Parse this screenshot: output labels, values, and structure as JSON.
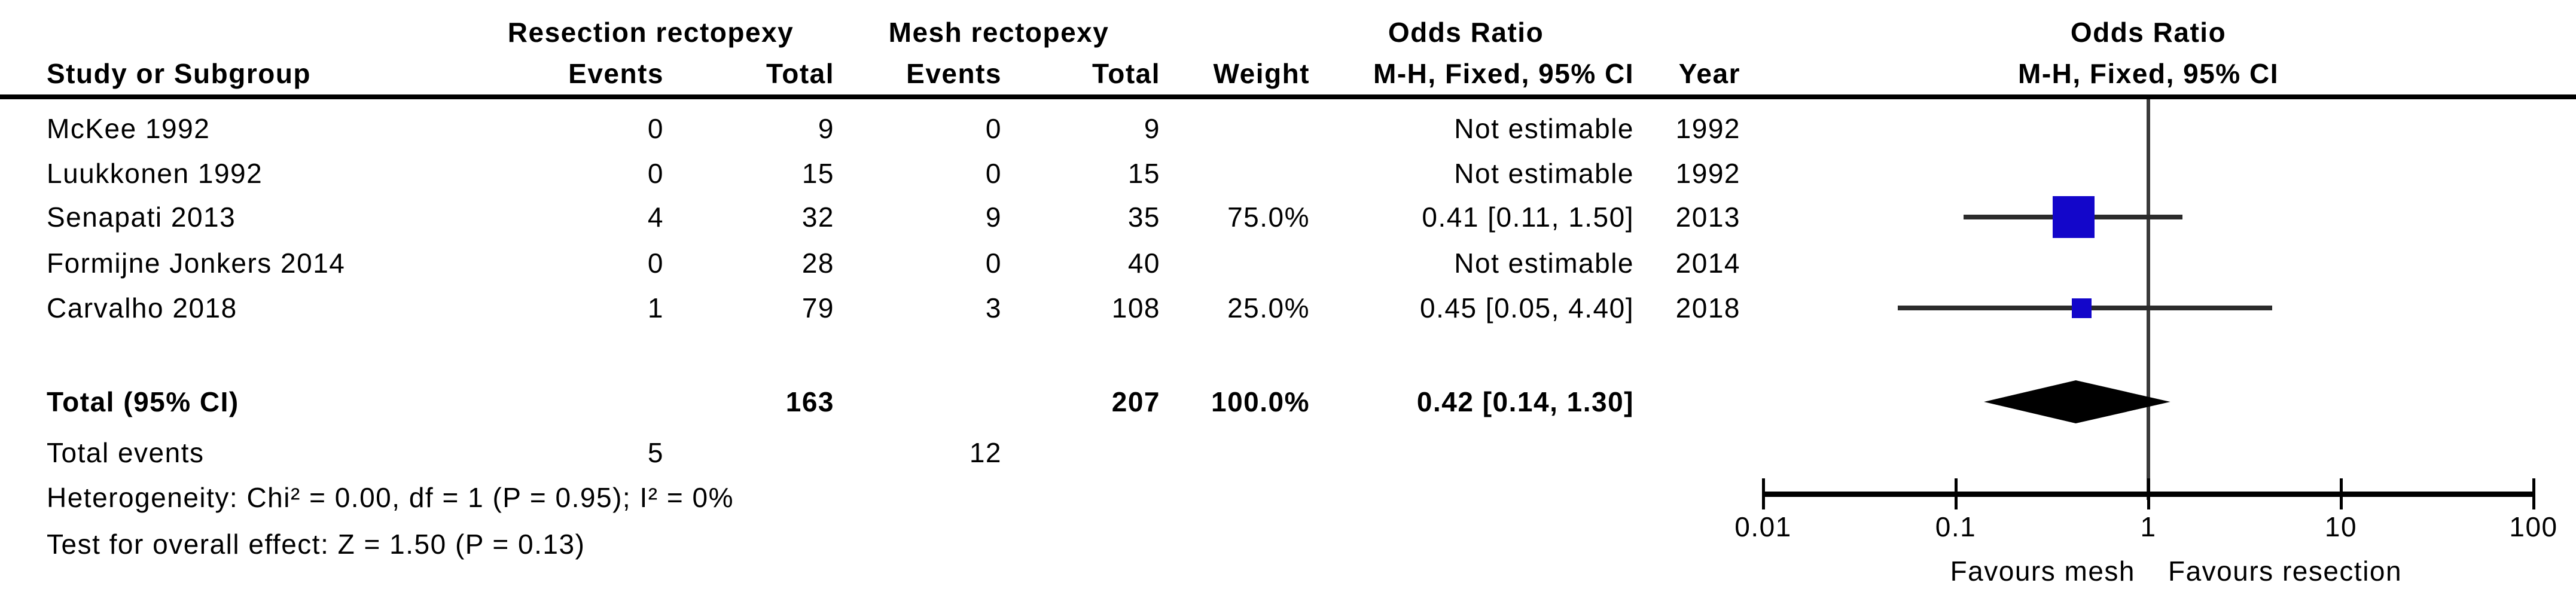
{
  "header": {
    "res_group": "Resection rectopexy",
    "mesh_group": "Mesh rectopexy",
    "or_table_title": "Odds Ratio",
    "or_plot_title": "Odds Ratio",
    "col_study": "Study or Subgroup",
    "col_res_events": "Events",
    "col_res_total": "Total",
    "col_mesh_events": "Events",
    "col_mesh_total": "Total",
    "col_weight": "Weight",
    "col_or_method": "M-H, Fixed, 95% CI",
    "col_year": "Year",
    "plot_method": "M-H, Fixed, 95% CI"
  },
  "chart_data": {
    "type": "forest",
    "effect_measure": "Odds Ratio",
    "method": "M-H, Fixed, 95% CI",
    "studies": [
      {
        "name": "McKee 1992",
        "res_events": "0",
        "res_total": "9",
        "mesh_events": "0",
        "mesh_total": "9",
        "weight": "",
        "or_text": "Not estimable",
        "year": "1992",
        "or": null,
        "ci_low": null,
        "ci_high": null,
        "weight_pct": 0
      },
      {
        "name": "Luukkonen 1992",
        "res_events": "0",
        "res_total": "15",
        "mesh_events": "0",
        "mesh_total": "15",
        "weight": "",
        "or_text": "Not estimable",
        "year": "1992",
        "or": null,
        "ci_low": null,
        "ci_high": null,
        "weight_pct": 0
      },
      {
        "name": "Senapati 2013",
        "res_events": "4",
        "res_total": "32",
        "mesh_events": "9",
        "mesh_total": "35",
        "weight": "75.0%",
        "or_text": "0.41 [0.11, 1.50]",
        "year": "2013",
        "or": 0.41,
        "ci_low": 0.11,
        "ci_high": 1.5,
        "weight_pct": 75
      },
      {
        "name": "Formijne Jonkers 2014",
        "res_events": "0",
        "res_total": "28",
        "mesh_events": "0",
        "mesh_total": "40",
        "weight": "",
        "or_text": "Not estimable",
        "year": "2014",
        "or": null,
        "ci_low": null,
        "ci_high": null,
        "weight_pct": 0
      },
      {
        "name": "Carvalho 2018",
        "res_events": "1",
        "res_total": "79",
        "mesh_events": "3",
        "mesh_total": "108",
        "weight": "25.0%",
        "or_text": "0.45 [0.05, 4.40]",
        "year": "2018",
        "or": 0.45,
        "ci_low": 0.05,
        "ci_high": 4.4,
        "weight_pct": 25
      }
    ],
    "total": {
      "label": "Total (95% CI)",
      "res_total": "163",
      "mesh_total": "207",
      "weight": "100.0%",
      "or_text": "0.42 [0.14, 1.30]",
      "or": 0.42,
      "ci_low": 0.14,
      "ci_high": 1.3
    },
    "total_events": {
      "label": "Total events",
      "res": "5",
      "mesh": "12"
    },
    "heterogeneity": "Heterogeneity: Chi² = 0.00, df = 1 (P = 0.95); I² = 0%",
    "overall_effect": "Test for overall effect: Z = 1.50 (P = 0.13)",
    "axis": {
      "scale": "log",
      "min": 0.01,
      "max": 100,
      "ticks": [
        "0.01",
        "0.1",
        "1",
        "10",
        "100"
      ],
      "null_value": 1,
      "favours_left": "Favours mesh",
      "favours_right": "Favours resection"
    },
    "colors": {
      "square": "#1306ca",
      "diamond": "#000000",
      "ci_line": "#2b2b2b",
      "null_line": "#3a3a3a"
    }
  }
}
